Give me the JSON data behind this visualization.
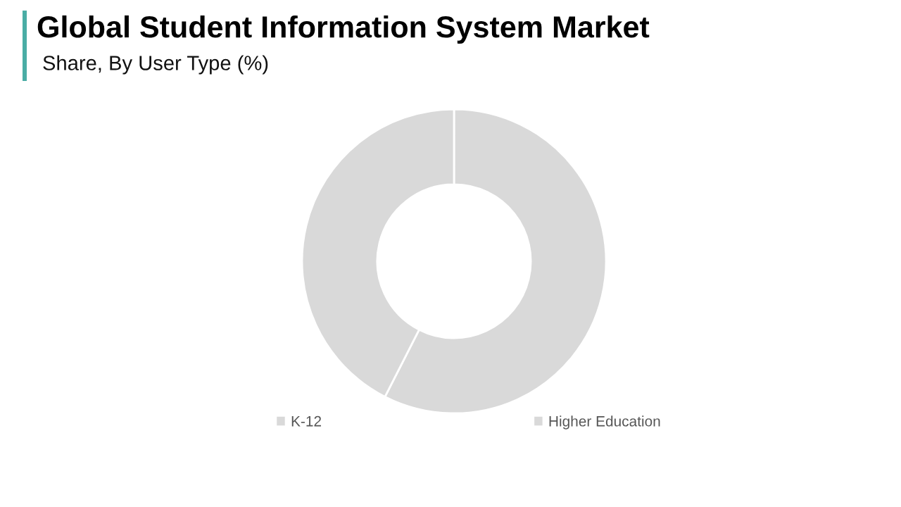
{
  "chart_data": {
    "type": "donut",
    "title": "Global Student Information System Market",
    "subtitle": "Share, By User Type (%)",
    "categories": [
      "K-12",
      "Higher Education"
    ],
    "values": [
      57.5,
      42.5
    ],
    "colors": [
      "#d9d9d9",
      "#d9d9d9"
    ],
    "legend": "bottom"
  }
}
